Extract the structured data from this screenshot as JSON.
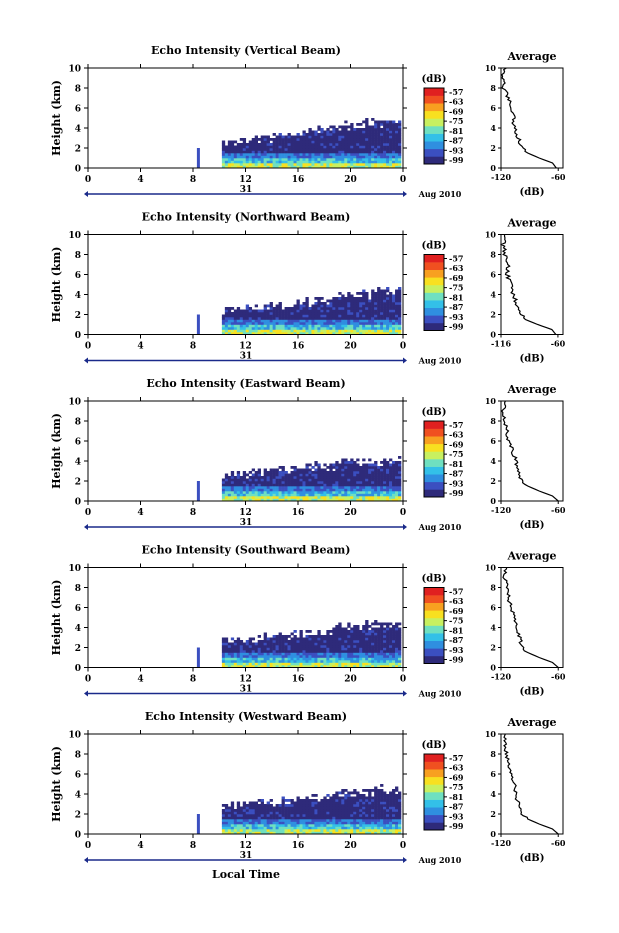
{
  "figure": {
    "bottom_xlabel": "Local Time",
    "colorbar_unit": "(dB)",
    "colorbar_ticks": [
      "-57",
      "-63",
      "-69",
      "-75",
      "-81",
      "-87",
      "-93",
      "-99"
    ],
    "colormap": [
      "#2e2a7a",
      "#3b4fc0",
      "#2f8fe0",
      "#33c0e8",
      "#6fe0c0",
      "#c8f060",
      "#f8e020",
      "#f8a020",
      "#f05020",
      "#e02020"
    ],
    "date_label": "Aug 2010",
    "day_label": "31",
    "average_title": "Average",
    "average_xlabel": "(dB)"
  },
  "chart_data": [
    {
      "type": "heatmap",
      "title": "Echo Intensity (Vertical Beam)",
      "ylabel": "Height (km)",
      "x_ticks": [
        "0",
        "4",
        "8",
        "12",
        "16",
        "20",
        "0"
      ],
      "y_ticks": [
        "0",
        "2",
        "4",
        "6",
        "8",
        "10"
      ],
      "xlim": [
        0,
        24
      ],
      "ylim": [
        0,
        10
      ],
      "data_start_hour": 10.2,
      "echo_top_km": [
        2.6,
        2.9,
        3.1,
        3.3,
        3.5,
        3.9,
        4.3,
        4.6,
        4.7,
        4.6
      ],
      "profile": {
        "x_ticks": [
          "-120",
          "-60"
        ],
        "xlim": [
          -120,
          -55
        ],
        "height_km": [
          0,
          0.5,
          1,
          1.5,
          2,
          3,
          4,
          5,
          6,
          7,
          8,
          9,
          10
        ],
        "db": [
          -62,
          -66,
          -80,
          -92,
          -98,
          -102,
          -106,
          -107,
          -108,
          -112,
          -117,
          -118,
          -116
        ]
      }
    },
    {
      "type": "heatmap",
      "title": "Echo Intensity (Northward Beam)",
      "ylabel": "Height (km)",
      "x_ticks": [
        "0",
        "4",
        "8",
        "12",
        "16",
        "20",
        "0"
      ],
      "y_ticks": [
        "0",
        "2",
        "4",
        "6",
        "8",
        "10"
      ],
      "xlim": [
        0,
        24
      ],
      "ylim": [
        0,
        10
      ],
      "data_start_hour": 10.2,
      "echo_top_km": [
        2.4,
        2.6,
        2.8,
        3.0,
        3.2,
        3.5,
        3.9,
        4.2,
        4.4,
        4.4
      ],
      "profile": {
        "x_ticks": [
          "-116",
          "-60"
        ],
        "xlim": [
          -116,
          -55
        ],
        "height_km": [
          0,
          0.5,
          1,
          1.5,
          2,
          3,
          4,
          5,
          6,
          7,
          8,
          9,
          10
        ],
        "db": [
          -62,
          -66,
          -80,
          -92,
          -96,
          -100,
          -104,
          -106,
          -110,
          -108,
          -112,
          -114,
          -112
        ]
      }
    },
    {
      "type": "heatmap",
      "title": "Echo Intensity (Eastward Beam)",
      "ylabel": "Height (km)",
      "x_ticks": [
        "0",
        "4",
        "8",
        "12",
        "16",
        "20",
        "0"
      ],
      "y_ticks": [
        "0",
        "2",
        "4",
        "6",
        "8",
        "10"
      ],
      "xlim": [
        0,
        24
      ],
      "ylim": [
        0,
        10
      ],
      "data_start_hour": 10.2,
      "echo_top_km": [
        2.6,
        2.8,
        3.0,
        3.1,
        3.3,
        3.6,
        3.9,
        4.1,
        4.2,
        4.0
      ],
      "profile": {
        "x_ticks": [
          "-120",
          "-60"
        ],
        "xlim": [
          -120,
          -55
        ],
        "height_km": [
          0,
          0.5,
          1,
          1.5,
          2,
          3,
          4,
          5,
          6,
          7,
          8,
          9,
          10
        ],
        "db": [
          -60,
          -66,
          -80,
          -92,
          -98,
          -102,
          -104,
          -108,
          -112,
          -114,
          -116,
          -118,
          -116
        ]
      }
    },
    {
      "type": "heatmap",
      "title": "Echo Intensity (Southward Beam)",
      "ylabel": "Height (km)",
      "x_ticks": [
        "0",
        "4",
        "8",
        "12",
        "16",
        "20",
        "0"
      ],
      "y_ticks": [
        "0",
        "2",
        "4",
        "6",
        "8",
        "10"
      ],
      "xlim": [
        0,
        24
      ],
      "ylim": [
        0,
        10
      ],
      "data_start_hour": 10.2,
      "echo_top_km": [
        2.6,
        2.8,
        3.0,
        3.2,
        3.4,
        3.7,
        4.0,
        4.3,
        4.5,
        4.4
      ],
      "profile": {
        "x_ticks": [
          "-120",
          "-60"
        ],
        "xlim": [
          -120,
          -55
        ],
        "height_km": [
          0,
          0.5,
          1,
          1.5,
          2,
          3,
          4,
          5,
          6,
          7,
          8,
          9,
          10
        ],
        "db": [
          -60,
          -66,
          -80,
          -92,
          -98,
          -100,
          -104,
          -106,
          -110,
          -112,
          -114,
          -116,
          -114
        ]
      }
    },
    {
      "type": "heatmap",
      "title": "Echo Intensity (Westward Beam)",
      "ylabel": "Height (km)",
      "x_ticks": [
        "0",
        "4",
        "8",
        "12",
        "16",
        "20",
        "0"
      ],
      "y_ticks": [
        "0",
        "2",
        "4",
        "6",
        "8",
        "10"
      ],
      "xlim": [
        0,
        24
      ],
      "ylim": [
        0,
        10
      ],
      "data_start_hour": 10.2,
      "echo_top_km": [
        2.8,
        3.0,
        3.2,
        3.4,
        3.6,
        3.9,
        4.2,
        4.4,
        4.5,
        4.4
      ],
      "profile": {
        "x_ticks": [
          "-120",
          "-60"
        ],
        "xlim": [
          -120,
          -55
        ],
        "height_km": [
          0,
          0.5,
          1,
          1.5,
          2,
          3,
          4,
          5,
          6,
          7,
          8,
          9,
          10
        ],
        "db": [
          -60,
          -66,
          -80,
          -92,
          -98,
          -102,
          -104,
          -106,
          -108,
          -112,
          -114,
          -116,
          -116
        ]
      }
    }
  ]
}
